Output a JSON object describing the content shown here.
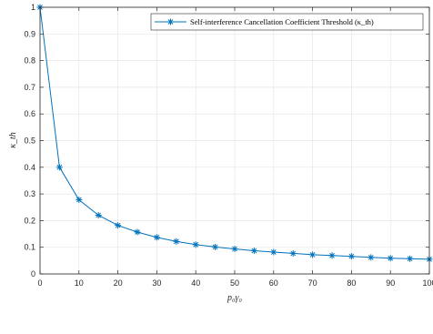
{
  "chart_data": {
    "type": "line",
    "title": "",
    "xlabel": "p₀γ₀",
    "ylabel": "κ_th",
    "xlim": [
      0,
      100
    ],
    "ylim": [
      0,
      1
    ],
    "x_ticks": [
      "0",
      "10",
      "20",
      "30",
      "40",
      "50",
      "60",
      "70",
      "80",
      "90",
      "100"
    ],
    "y_ticks": [
      "0",
      "0.1",
      "0.2",
      "0.3",
      "0.4",
      "0.5",
      "0.6",
      "0.7",
      "0.8",
      "0.9",
      "1"
    ],
    "grid": true,
    "legend_position": "top-right",
    "series": [
      {
        "name": "Self-interference Cancellation Coefficient Threshold (κ_th)",
        "color": "#0072BD",
        "marker": "asterisk",
        "x": [
          0,
          5,
          10,
          15,
          20,
          25,
          30,
          35,
          40,
          45,
          50,
          55,
          60,
          65,
          70,
          75,
          80,
          85,
          90,
          95,
          100
        ],
        "y": [
          1.0,
          0.4,
          0.278,
          0.22,
          0.182,
          0.157,
          0.137,
          0.122,
          0.11,
          0.101,
          0.094,
          0.087,
          0.082,
          0.077,
          0.072,
          0.069,
          0.066,
          0.062,
          0.059,
          0.057,
          0.055
        ]
      }
    ]
  }
}
